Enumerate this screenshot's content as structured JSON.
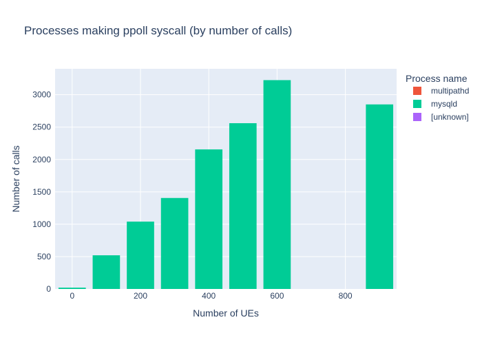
{
  "chart_data": {
    "type": "bar",
    "title": "Processes making ppoll syscall (by number of calls)",
    "xlabel": "Number of UEs",
    "ylabel": "Number of calls",
    "x": [
      0,
      100,
      200,
      300,
      400,
      500,
      600,
      900
    ],
    "series": [
      {
        "name": "multipathd",
        "color": "#EF553B",
        "values": [
          0,
          0,
          0,
          0,
          0,
          0,
          0,
          0
        ]
      },
      {
        "name": "mysqld",
        "color": "#00CC96",
        "values": [
          20,
          520,
          1040,
          1405,
          2155,
          2560,
          3225,
          2850
        ]
      },
      {
        "name": "[unknown]",
        "color": "#AB63FA",
        "values": [
          0,
          0,
          0,
          0,
          0,
          0,
          0,
          0
        ]
      }
    ],
    "xlim": [
      -50,
      950
    ],
    "ylim": [
      0,
      3400
    ],
    "xticks": [
      0,
      200,
      400,
      600,
      800
    ],
    "yticks": [
      0,
      500,
      1000,
      1500,
      2000,
      2500,
      3000
    ],
    "grid": true,
    "legend_title": "Process name",
    "legend_position": "right",
    "plot_background": "#E5ECF6"
  }
}
